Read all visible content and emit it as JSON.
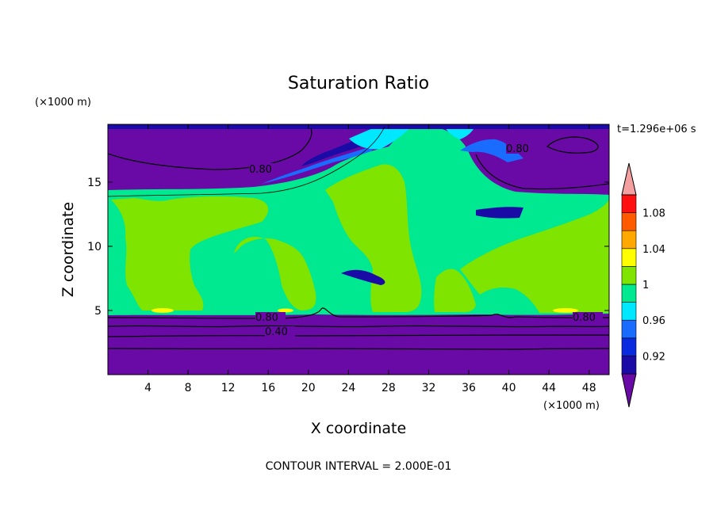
{
  "chart_data": {
    "type": "heatmap",
    "title": "Saturation Ratio",
    "xlabel": "X coordinate",
    "ylabel": "Z coordinate",
    "x_unit": "(×1000 m)",
    "y_unit": "(×1000 m)",
    "time_label": "t=1.296e+06 s",
    "footer": "CONTOUR INTERVAL = 2.000E-01",
    "xlim": [
      0,
      50
    ],
    "ylim": [
      0,
      19.5
    ],
    "x_ticks": [
      "4",
      "8",
      "12",
      "16",
      "20",
      "24",
      "28",
      "32",
      "36",
      "40",
      "44",
      "48"
    ],
    "y_ticks": [
      "5",
      "10",
      "15"
    ],
    "colorbar": {
      "levels": [
        0.9,
        0.92,
        0.94,
        0.96,
        0.98,
        1.0,
        1.02,
        1.04,
        1.06,
        1.08,
        1.1
      ],
      "labels": [
        "0.92",
        "0.96",
        "1",
        "1.04",
        "1.08"
      ],
      "colors": [
        "#6a0aa6",
        "#1a0aa6",
        "#0a2ae0",
        "#1a6cff",
        "#00e8ff",
        "#00e890",
        "#7ee400",
        "#ffff00",
        "#ffa800",
        "#ff5a00",
        "#ff1010",
        "#f4a0a0"
      ]
    },
    "contour_labels": [
      "0.80",
      "0.80",
      "0.80",
      "0.80",
      "0.40"
    ],
    "regions": [
      {
        "name": "lower-dry-layer",
        "z_range": [
          0,
          4.8
        ],
        "value": "<0.90"
      },
      {
        "name": "mid-saturated-layer",
        "z_range": [
          4.8,
          14.5
        ],
        "value": "0.98-1.02"
      },
      {
        "name": "upper-dry-layer",
        "z_range": [
          14.5,
          19.5
        ],
        "value": "<0.90"
      }
    ],
    "grid": false
  }
}
